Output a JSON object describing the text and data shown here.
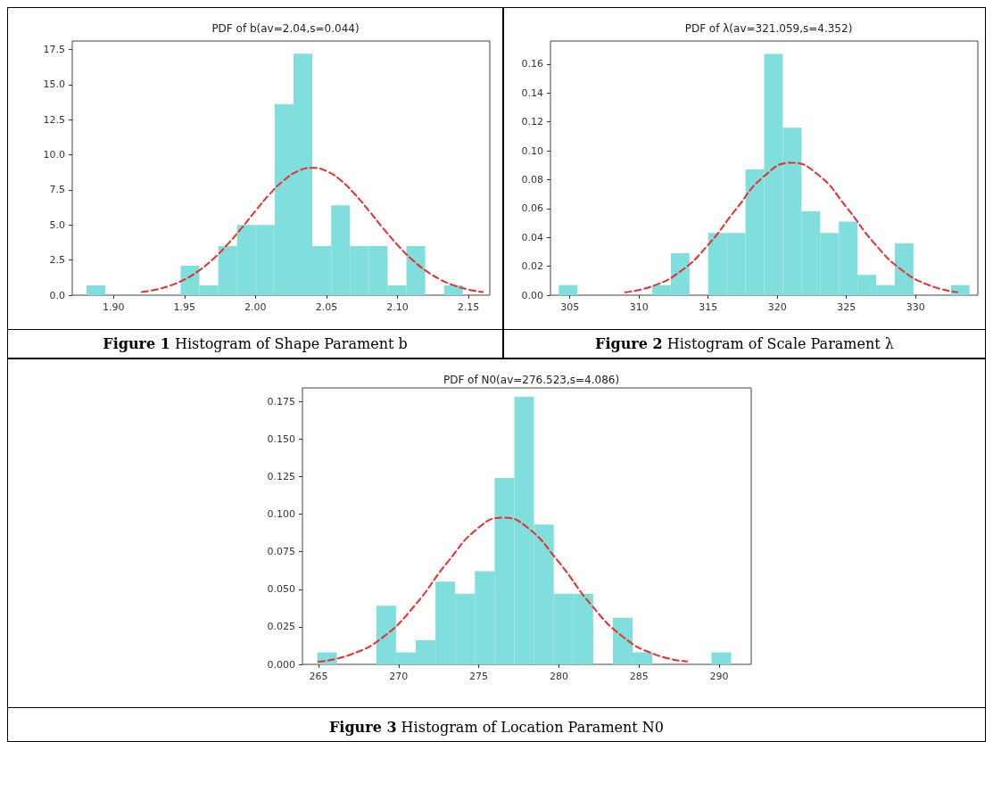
{
  "chart_data": [
    {
      "type": "histogram",
      "title": "PDF of b(av=2.04,s=0.044)",
      "annotations": [
        "Figure 1 Histogram of Shape Parament b"
      ],
      "grid": false,
      "xlim": [
        1.871,
        2.165
      ],
      "ylim": [
        0,
        18.1
      ],
      "xticks": [
        {
          "value": 1.9,
          "label": "1.90"
        },
        {
          "value": 1.95,
          "label": "1.95"
        },
        {
          "value": 2.0,
          "label": "2.00"
        },
        {
          "value": 2.05,
          "label": "2.05"
        },
        {
          "value": 2.1,
          "label": "2.10"
        },
        {
          "value": 2.15,
          "label": "2.15"
        }
      ],
      "yticks": [
        {
          "value": 0,
          "label": "0.0"
        },
        2.5,
        {
          "value": 5,
          "label": "5.0"
        },
        7.5,
        {
          "value": 10,
          "label": "10.0"
        },
        12.5,
        {
          "value": 15,
          "label": "15.0"
        },
        17.5
      ],
      "series": [
        {
          "color": "#80dedd",
          "bins": [
            1.881,
            1.8943,
            1.9075,
            1.9208,
            1.934,
            1.9473,
            1.9605,
            1.9738,
            1.987,
            2.0003,
            2.0135,
            2.0268,
            2.04,
            2.0533,
            2.0665,
            2.0798,
            2.093,
            2.1063,
            2.1195,
            2.1328,
            2.146
          ],
          "values": [
            0.7,
            0,
            0,
            0,
            0,
            2.1,
            0.7,
            3.5,
            5.0,
            5.0,
            13.6,
            17.2,
            3.5,
            6.4,
            3.5,
            3.5,
            0.7,
            3.5,
            0,
            0.7
          ]
        },
        {
          "type": "line",
          "color": "#ee2b2b",
          "line_style": "dashed",
          "marker": "none",
          "x": [
            1.92,
            1.93,
            1.94,
            1.95,
            1.96,
            1.97,
            1.98,
            1.99,
            2.0,
            2.01,
            2.02,
            2.03,
            2.04,
            2.05,
            2.06,
            2.07,
            2.08,
            2.09,
            2.1,
            2.11,
            2.12,
            2.13,
            2.14,
            2.15,
            2.16
          ],
          "values": [
            0.22,
            0.4,
            0.69,
            1.12,
            1.74,
            2.56,
            3.58,
            4.75,
            6.0,
            7.19,
            8.18,
            8.84,
            9.07,
            8.84,
            8.18,
            7.19,
            6.0,
            4.75,
            3.58,
            2.56,
            1.74,
            1.12,
            0.69,
            0.4,
            0.22
          ]
        }
      ]
    },
    {
      "type": "histogram",
      "title": "PDF of λ(av=321.059,s=4.352)",
      "annotations": [
        "Figure 2 Histogram of Scale Parament λ"
      ],
      "grid": false,
      "xlim": [
        303.6,
        334.5
      ],
      "ylim": [
        0,
        0.176
      ],
      "xticks": [
        305,
        310,
        315,
        320,
        325,
        330
      ],
      "yticks": [
        {
          "value": 0,
          "label": "0.00"
        },
        0.02,
        0.04,
        0.06,
        0.08,
        {
          "value": 0.1,
          "label": "0.10"
        },
        0.12,
        0.14,
        0.16
      ],
      "series": [
        {
          "color": "#80dedd",
          "bins": [
            304.2,
            305.55,
            306.9,
            308.25,
            309.6,
            310.95,
            312.3,
            313.65,
            315.0,
            316.35,
            317.7,
            319.05,
            320.4,
            321.75,
            323.1,
            324.45,
            325.8,
            327.15,
            328.5,
            329.85,
            331.2,
            332.55,
            333.9
          ],
          "values": [
            0.007,
            0,
            0,
            0,
            0,
            0.007,
            0.029,
            0,
            0.043,
            0.043,
            0.087,
            0.167,
            0.116,
            0.058,
            0.043,
            0.051,
            0.014,
            0.007,
            0.036,
            0,
            0,
            0.007
          ]
        },
        {
          "type": "line",
          "color": "#ee2b2b",
          "line_style": "dashed",
          "marker": "none",
          "x": [
            309,
            311,
            313,
            315,
            317,
            319,
            321,
            323,
            325,
            327,
            329,
            331,
            333
          ],
          "values": [
            0.002,
            0.0063,
            0.0165,
            0.0348,
            0.0593,
            0.082,
            0.0917,
            0.083,
            0.0609,
            0.0361,
            0.0174,
            0.0068,
            0.0021
          ]
        }
      ]
    },
    {
      "type": "histogram",
      "title": "PDF of N0(av=276.523,s=4.086)",
      "annotations": [
        "Figure 3 Histogram of Location Parament N0"
      ],
      "grid": false,
      "xlim": [
        264.0,
        292.0
      ],
      "ylim": [
        0,
        0.184
      ],
      "xticks": [
        265,
        270,
        275,
        280,
        285,
        290
      ],
      "yticks": [
        {
          "value": 0,
          "label": "0.000"
        },
        0.025,
        {
          "value": 0.05,
          "label": "0.050"
        },
        0.075,
        {
          "value": 0.1,
          "label": "0.100"
        },
        0.125,
        {
          "value": 0.15,
          "label": "0.150"
        },
        0.175
      ],
      "series": [
        {
          "color": "#80dedd",
          "bins": [
            264.92,
            266.15,
            267.38,
            268.61,
            269.84,
            271.07,
            272.3,
            273.53,
            274.76,
            275.99,
            277.22,
            278.45,
            279.68,
            280.91,
            282.14,
            283.37,
            284.6,
            285.83,
            287.06,
            288.29,
            289.52,
            290.75
          ],
          "values": [
            0.008,
            0,
            0,
            0.039,
            0.008,
            0.016,
            0.055,
            0.047,
            0.062,
            0.124,
            0.178,
            0.093,
            0.047,
            0.047,
            0,
            0.031,
            0.008,
            0,
            0,
            0,
            0.008
          ]
        },
        {
          "type": "line",
          "color": "#ee2b2b",
          "line_style": "dashed",
          "marker": "none",
          "x": [
            265,
            267,
            269,
            271,
            273,
            275,
            276.5,
            278,
            280,
            282,
            284,
            286,
            288
          ],
          "values": [
            0.0018,
            0.0065,
            0.0179,
            0.0391,
            0.0673,
            0.0911,
            0.0976,
            0.0914,
            0.068,
            0.0398,
            0.0183,
            0.0066,
            0.0019
          ]
        }
      ]
    }
  ]
}
